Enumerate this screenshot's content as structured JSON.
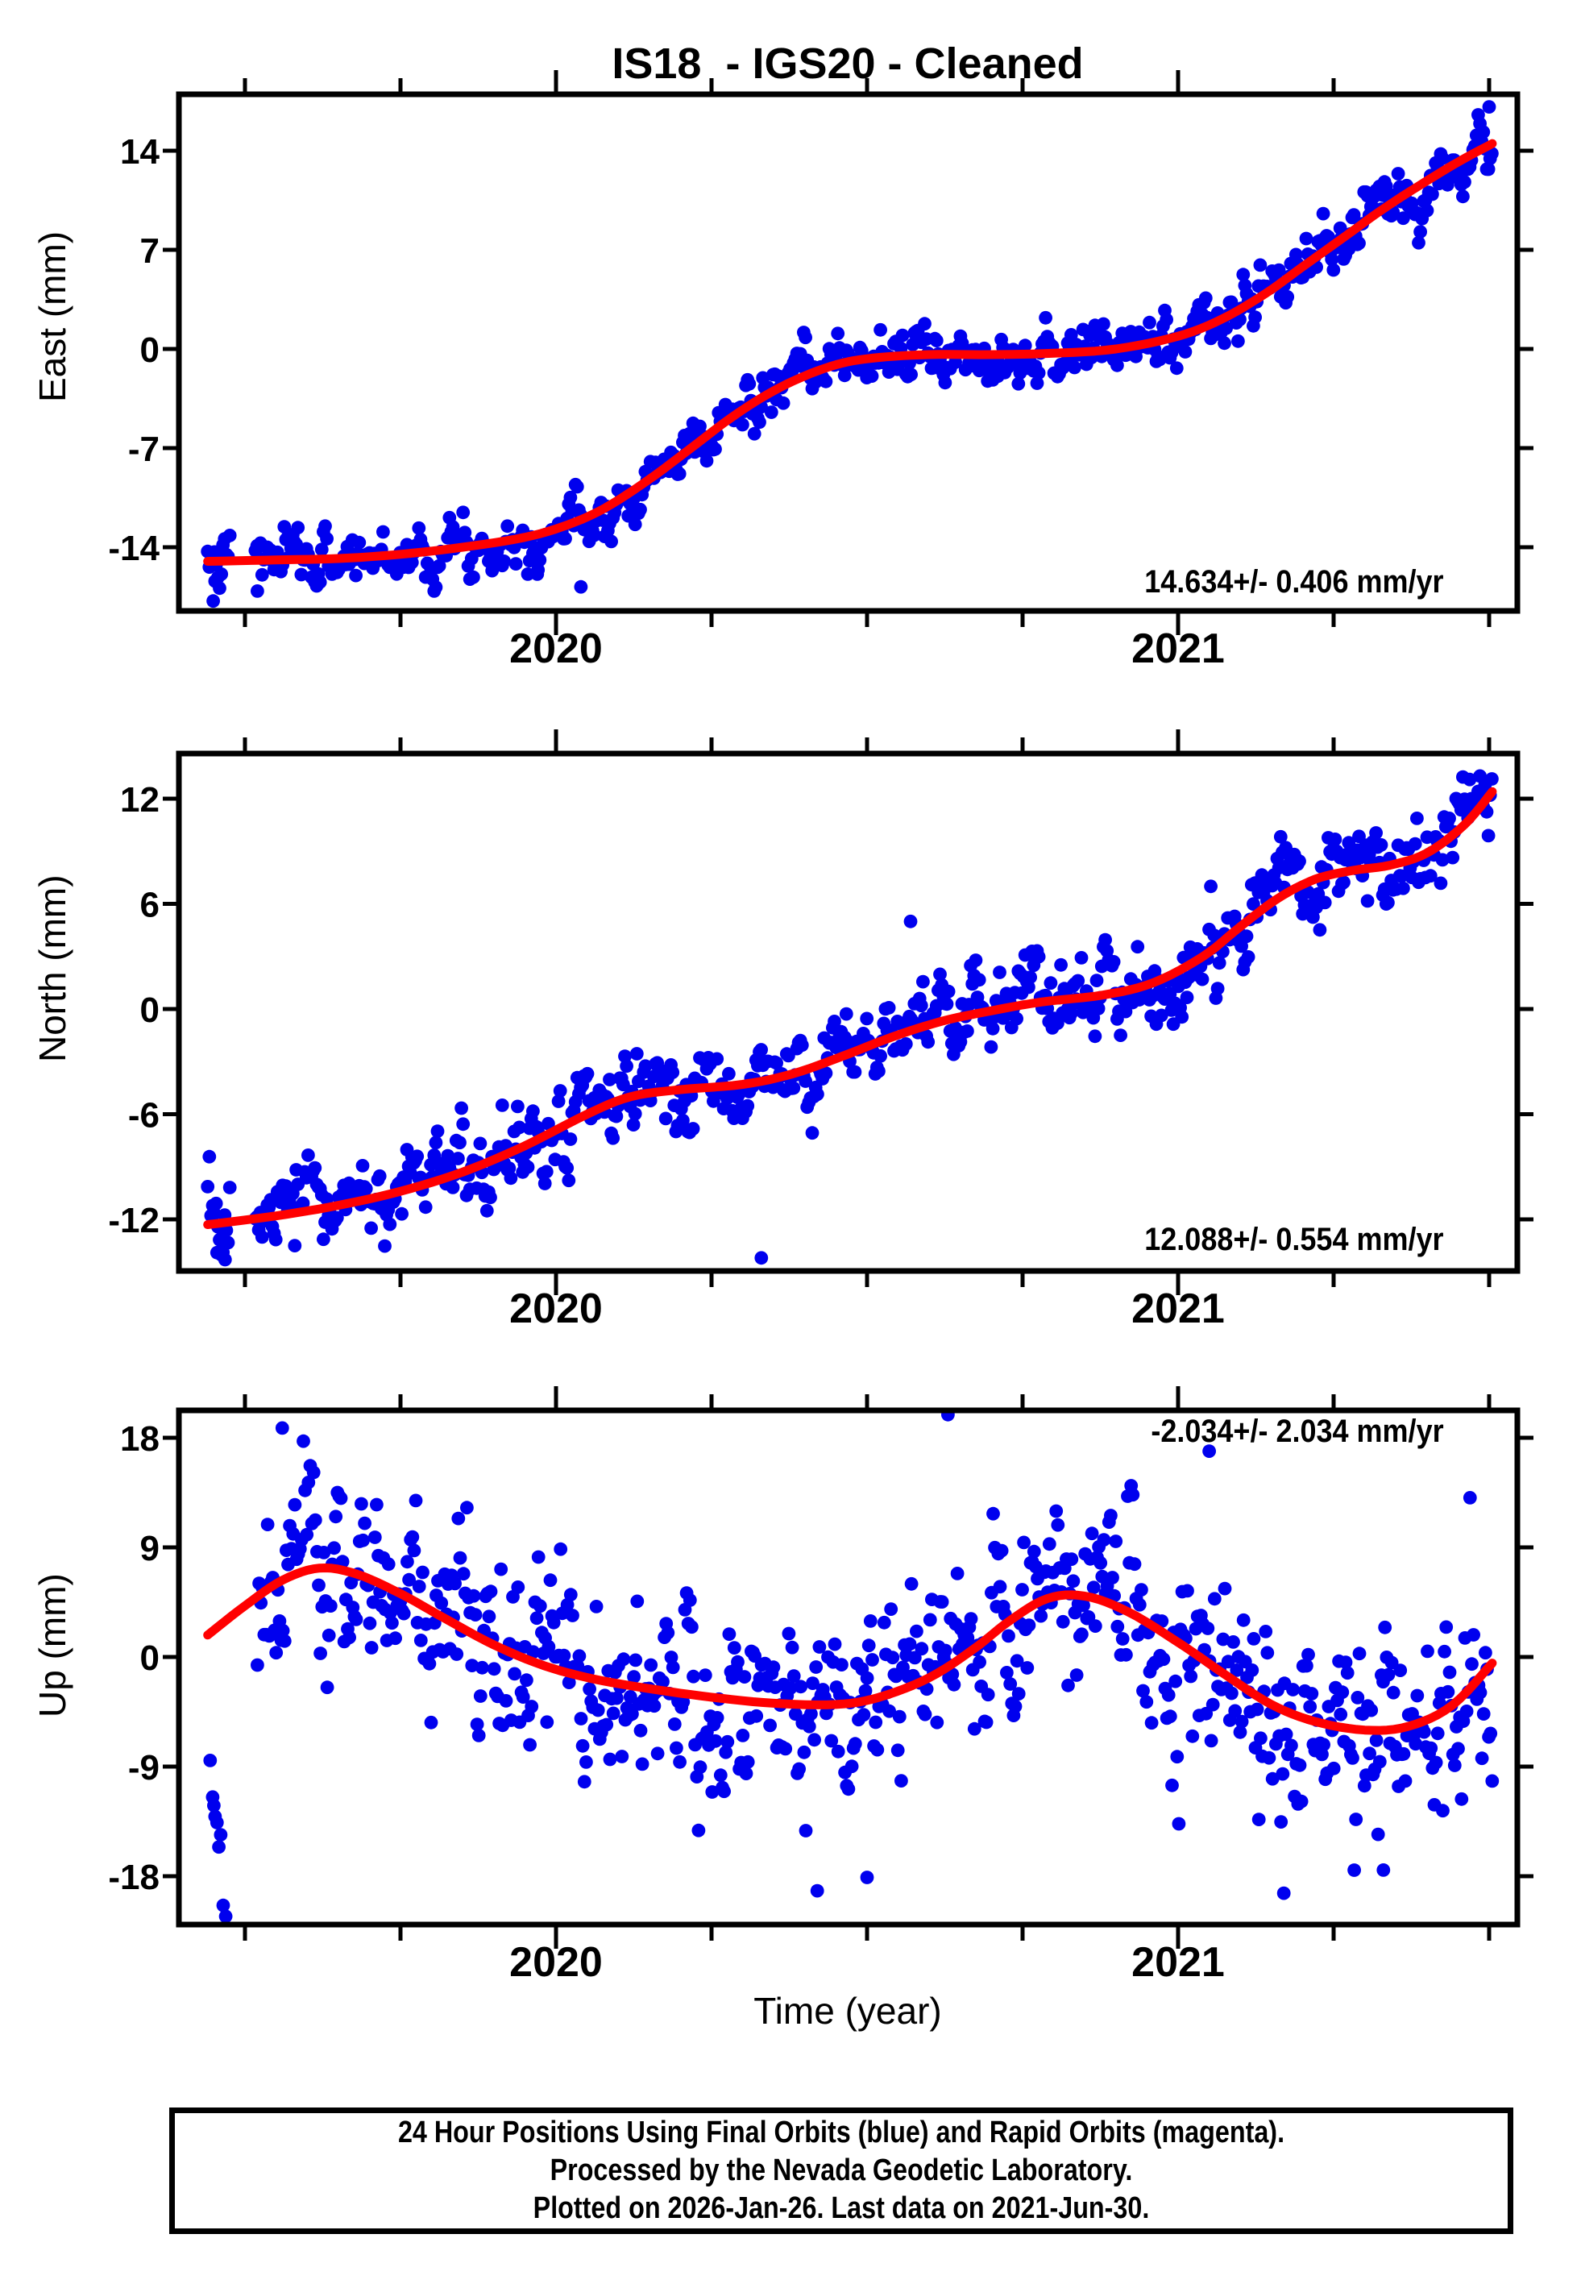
{
  "title": "IS18  - IGS20 - Cleaned",
  "xlabel": "Time (year)",
  "caption": {
    "lines": [
      "24 Hour Positions Using Final Orbits (blue) and Rapid Orbits (magenta).",
      "Processed by the Nevada Geodetic Laboratory.",
      "Plotted on 2026-Jan-26. Last data on 2021-Jun-30."
    ]
  },
  "colors": {
    "background": "#ffffff",
    "axis": "#000000",
    "points": "#0000ee",
    "trend": "#ff0000"
  },
  "x_axis": {
    "xlim": [
      2019.394,
      2021.545
    ],
    "year_ticks": [
      2020,
      2021
    ],
    "year_labels": [
      "2020",
      "2021"
    ],
    "minor_tick_start": 2019.5,
    "minor_tick_end": 2021.5,
    "minor_tick_step": 0.25
  },
  "chart_data": [
    {
      "type": "scatter",
      "component": "east",
      "ylabel": "East (mm)",
      "yticks": [
        14,
        7,
        0,
        -7,
        -14
      ],
      "ylim": [
        -18.5,
        18.0
      ],
      "xlim": [
        2019.394,
        2021.545
      ],
      "rate_text": "14.634+/- 0.406 mm/yr",
      "rate_pos": "bottom-right",
      "trend": [
        [
          2019.44,
          -15.0
        ],
        [
          2019.55,
          -14.9
        ],
        [
          2019.65,
          -14.8
        ],
        [
          2019.75,
          -14.5
        ],
        [
          2019.85,
          -14.0
        ],
        [
          2019.95,
          -13.3
        ],
        [
          2020.02,
          -12.4
        ],
        [
          2020.08,
          -11.2
        ],
        [
          2020.15,
          -9.2
        ],
        [
          2020.22,
          -6.9
        ],
        [
          2020.28,
          -4.9
        ],
        [
          2020.34,
          -3.2
        ],
        [
          2020.4,
          -1.9
        ],
        [
          2020.46,
          -1.0
        ],
        [
          2020.52,
          -0.6
        ],
        [
          2020.6,
          -0.4
        ],
        [
          2020.7,
          -0.4
        ],
        [
          2020.8,
          -0.3
        ],
        [
          2020.9,
          0.0
        ],
        [
          2021.0,
          0.9
        ],
        [
          2021.07,
          2.1
        ],
        [
          2021.14,
          3.9
        ],
        [
          2021.2,
          5.8
        ],
        [
          2021.27,
          8.0
        ],
        [
          2021.33,
          9.9
        ],
        [
          2021.39,
          11.6
        ],
        [
          2021.45,
          13.2
        ],
        [
          2021.505,
          14.5
        ]
      ],
      "scatter": {
        "start": 2019.44,
        "end": 2021.505,
        "step_days": 1,
        "sigma": 1.0,
        "ar": 0.55,
        "seed": 7,
        "gaps": [
          [
            2019.476,
            2019.514
          ]
        ]
      },
      "outliers": [
        [
          2019.449,
          -17.8
        ],
        [
          2019.452,
          -16.4
        ],
        [
          2019.462,
          -15.9
        ],
        [
          2019.52,
          -17.1
        ],
        [
          2019.64,
          -15.9
        ],
        [
          2019.97,
          -15.9
        ],
        [
          2020.04,
          -16.8
        ],
        [
          2021.5,
          17.1
        ]
      ]
    },
    {
      "type": "scatter",
      "component": "north",
      "ylabel": "North (mm)",
      "yticks": [
        12,
        6,
        0,
        -6,
        -12
      ],
      "ylim": [
        -14.9,
        14.6
      ],
      "xlim": [
        2019.394,
        2021.545
      ],
      "rate_text": "12.088+/- 0.554 mm/yr",
      "rate_pos": "bottom-right",
      "trend": [
        [
          2019.44,
          -12.3
        ],
        [
          2019.55,
          -11.8
        ],
        [
          2019.65,
          -11.2
        ],
        [
          2019.75,
          -10.4
        ],
        [
          2019.85,
          -9.3
        ],
        [
          2019.95,
          -7.8
        ],
        [
          2020.05,
          -6.0
        ],
        [
          2020.12,
          -5.0
        ],
        [
          2020.2,
          -4.6
        ],
        [
          2020.3,
          -4.3
        ],
        [
          2020.38,
          -3.7
        ],
        [
          2020.46,
          -2.7
        ],
        [
          2020.54,
          -1.6
        ],
        [
          2020.62,
          -0.7
        ],
        [
          2020.7,
          -0.1
        ],
        [
          2020.78,
          0.4
        ],
        [
          2020.88,
          0.8
        ],
        [
          2020.96,
          1.5
        ],
        [
          2021.04,
          3.0
        ],
        [
          2021.1,
          4.7
        ],
        [
          2021.16,
          6.3
        ],
        [
          2021.22,
          7.4
        ],
        [
          2021.28,
          7.9
        ],
        [
          2021.34,
          8.2
        ],
        [
          2021.4,
          8.9
        ],
        [
          2021.46,
          10.5
        ],
        [
          2021.505,
          12.4
        ]
      ],
      "scatter": {
        "start": 2019.44,
        "end": 2021.505,
        "step_days": 1,
        "sigma": 1.25,
        "ar": 0.5,
        "seed": 13,
        "gaps": [
          [
            2019.476,
            2019.514
          ]
        ]
      },
      "outliers": [
        [
          2019.455,
          -13.9
        ],
        [
          2019.468,
          -14.3
        ],
        [
          2019.58,
          -13.5
        ],
        [
          2020.33,
          -14.2
        ],
        [
          2020.57,
          5.0
        ]
      ]
    },
    {
      "type": "scatter",
      "component": "up",
      "ylabel": "Up (mm)",
      "yticks": [
        18,
        9,
        0,
        -9,
        -18
      ],
      "ylim": [
        -22.0,
        20.3
      ],
      "xlim": [
        2019.394,
        2021.545
      ],
      "rate_text": "-2.034+/- 2.034 mm/yr",
      "rate_pos": "top-right",
      "trend": [
        [
          2019.44,
          1.8
        ],
        [
          2019.5,
          4.2
        ],
        [
          2019.56,
          6.3
        ],
        [
          2019.62,
          7.3
        ],
        [
          2019.68,
          6.8
        ],
        [
          2019.75,
          5.2
        ],
        [
          2019.82,
          3.2
        ],
        [
          2019.9,
          1.0
        ],
        [
          2019.98,
          -0.7
        ],
        [
          2020.06,
          -1.8
        ],
        [
          2020.15,
          -2.6
        ],
        [
          2020.25,
          -3.3
        ],
        [
          2020.35,
          -3.8
        ],
        [
          2020.45,
          -3.9
        ],
        [
          2020.52,
          -3.3
        ],
        [
          2020.6,
          -1.7
        ],
        [
          2020.67,
          0.6
        ],
        [
          2020.73,
          3.0
        ],
        [
          2020.79,
          4.8
        ],
        [
          2020.85,
          5.0
        ],
        [
          2020.92,
          3.7
        ],
        [
          2021.0,
          1.2
        ],
        [
          2021.08,
          -1.6
        ],
        [
          2021.15,
          -3.9
        ],
        [
          2021.22,
          -5.3
        ],
        [
          2021.3,
          -6.0
        ],
        [
          2021.37,
          -5.7
        ],
        [
          2021.44,
          -4.0
        ],
        [
          2021.505,
          -0.5
        ]
      ],
      "scatter": {
        "start": 2019.52,
        "end": 2021.505,
        "step_days": 1,
        "sigma": 4.2,
        "ar": 0.45,
        "seed": 21,
        "gaps": []
      },
      "outliers": [
        [
          2019.444,
          -8.5
        ],
        [
          2019.448,
          -11.5
        ],
        [
          2019.45,
          -12.2
        ],
        [
          2019.452,
          -13.1
        ],
        [
          2019.455,
          -13.6
        ],
        [
          2019.458,
          -15.6
        ],
        [
          2019.461,
          -14.6
        ],
        [
          2019.465,
          -20.4
        ],
        [
          2019.469,
          -21.3
        ],
        [
          2019.56,
          18.8
        ],
        [
          2020.42,
          -19.2
        ],
        [
          2020.5,
          -18.1
        ],
        [
          2020.63,
          19.9
        ],
        [
          2021.05,
          16.9
        ],
        [
          2021.17,
          -19.4
        ],
        [
          2021.33,
          -17.5
        ]
      ]
    }
  ]
}
